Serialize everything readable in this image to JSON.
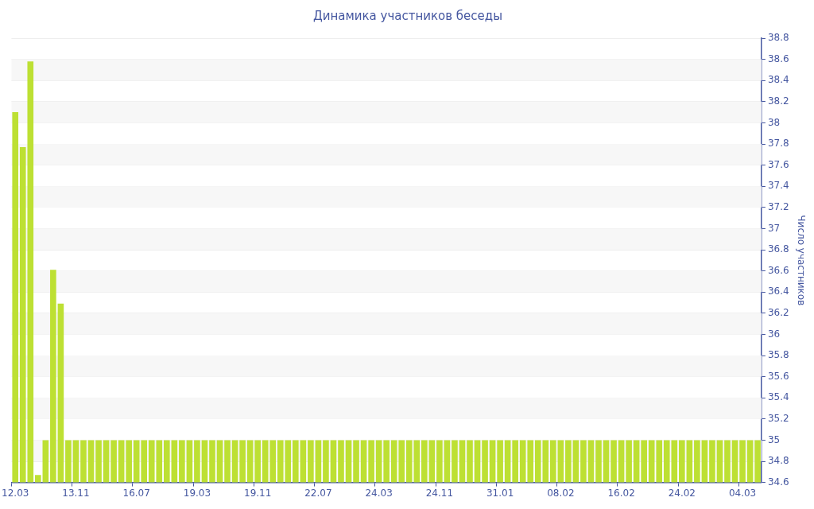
{
  "chart_data": {
    "type": "bar",
    "title": "Динамика участников беседы",
    "ylabel": "Число участников",
    "categories": [
      "12.03",
      null,
      null,
      null,
      null,
      null,
      null,
      null,
      "13.11",
      null,
      null,
      null,
      null,
      null,
      null,
      null,
      "16.07",
      null,
      null,
      null,
      null,
      null,
      null,
      null,
      "19.03",
      null,
      null,
      null,
      null,
      null,
      null,
      null,
      "19.11",
      null,
      null,
      null,
      null,
      null,
      null,
      null,
      "22.07",
      null,
      null,
      null,
      null,
      null,
      null,
      null,
      "24.03",
      null,
      null,
      null,
      null,
      null,
      null,
      null,
      "24.11",
      null,
      null,
      null,
      null,
      null,
      null,
      null,
      "31.01",
      null,
      null,
      null,
      null,
      null,
      null,
      null,
      "08.02",
      null,
      null,
      null,
      null,
      null,
      null,
      null,
      "16.02",
      null,
      null,
      null,
      null,
      null,
      null,
      null,
      "24.02",
      null,
      null,
      null,
      null,
      null,
      null,
      null,
      "04.03",
      null,
      null
    ],
    "values": [
      38.1,
      37.77,
      38.58,
      34.67,
      35,
      36.61,
      36.29,
      35,
      35,
      35,
      35,
      35,
      35,
      35,
      35,
      35,
      35,
      35,
      35,
      35,
      35,
      35,
      35,
      35,
      35,
      35,
      35,
      35,
      35,
      35,
      35,
      35,
      35,
      35,
      35,
      35,
      35,
      35,
      35,
      35,
      35,
      35,
      35,
      35,
      35,
      35,
      35,
      35,
      35,
      35,
      35,
      35,
      35,
      35,
      35,
      35,
      35,
      35,
      35,
      35,
      35,
      35,
      35,
      35,
      35,
      35,
      35,
      35,
      35,
      35,
      35,
      35,
      35,
      35,
      35,
      35,
      35,
      35,
      35,
      35,
      35,
      35,
      35,
      35,
      35,
      35,
      35,
      35,
      35,
      35,
      35,
      35,
      35,
      35,
      35,
      35,
      35,
      35,
      35
    ],
    "color": "#bde033",
    "ylim": [
      34.6,
      38.8
    ],
    "yticks": [
      34.6,
      34.8,
      35,
      35.2,
      35.4,
      35.6,
      35.8,
      36,
      36.2,
      36.4,
      36.6,
      36.8,
      37,
      37.2,
      37.4,
      37.6,
      37.8,
      38,
      38.2,
      38.4,
      38.6,
      38.8
    ],
    "grid": "y",
    "legend": false
  }
}
